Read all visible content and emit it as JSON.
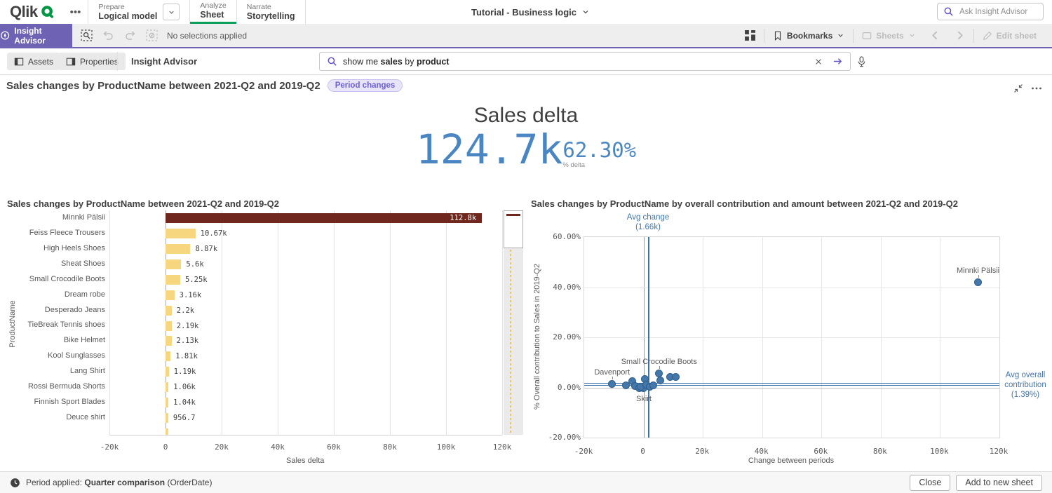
{
  "nav": {
    "logo": "Qlik",
    "prepare": {
      "section": "Prepare",
      "value": "Logical model"
    },
    "analyze": {
      "section": "Analyze",
      "value": "Sheet"
    },
    "narrate": {
      "section": "Narrate",
      "value": "Storytelling"
    },
    "app_title": "Tutorial - Business logic",
    "ask_placeholder": "Ask Insight Advisor"
  },
  "toolbar": {
    "insight_advisor": "Insight Advisor",
    "selections_status": "No selections applied",
    "bookmarks": "Bookmarks",
    "sheets": "Sheets",
    "edit_sheet": "Edit sheet"
  },
  "subheader": {
    "assets": "Assets",
    "properties": "Properties",
    "title": "Insight Advisor",
    "query_parts": [
      {
        "text": "show me ",
        "bold": false
      },
      {
        "text": "sales",
        "bold": true
      },
      {
        "text": " by ",
        "bold": false
      },
      {
        "text": "product",
        "bold": true
      }
    ]
  },
  "result": {
    "title": "Sales changes by ProductName between 2021-Q2 and 2019-Q2",
    "badge": "Period changes"
  },
  "kpi": {
    "title": "Sales delta",
    "value": "124.7k",
    "delta": "62.30%",
    "delta_label": "% delta"
  },
  "footer": {
    "period_label": "Period applied:",
    "period_name": "Quarter comparison",
    "period_field": "(OrderDate)",
    "close": "Close",
    "add_to_new_sheet": "Add to new sheet"
  },
  "chart_data": [
    {
      "type": "bar",
      "orientation": "horizontal",
      "title": "Sales changes by ProductName between 2021-Q2 and 2019-Q2",
      "xlabel": "Sales delta",
      "ylabel": "ProductName",
      "xlim": [
        -20000,
        120000
      ],
      "x_tick_values": [
        -20000,
        0,
        20000,
        40000,
        60000,
        80000,
        100000,
        120000
      ],
      "x_tick_labels": [
        "-20k",
        "0",
        "20k",
        "40k",
        "60k",
        "80k",
        "100k",
        "120k"
      ],
      "categories": [
        "Minnki Pälsii",
        "Feiss Fleece Trousers",
        "High Heels Shoes",
        "Sheat Shoes",
        "Small Crocodile Boots",
        "Dream robe",
        "Desperado Jeans",
        "TieBreak Tennis shoes",
        "Bike Helmet",
        "Kool Sunglasses",
        "Lang Shirt",
        "Rossi Bermuda Shorts",
        "Finnish Sport Blades",
        "Deuce shirt"
      ],
      "values": [
        112800,
        10670,
        8870,
        5600,
        5250,
        3160,
        2200,
        2190,
        2130,
        1810,
        1190,
        1060,
        1040,
        956.7
      ],
      "value_labels": [
        "112.8k",
        "10.67k",
        "8.87k",
        "5.6k",
        "5.25k",
        "3.16k",
        "2.2k",
        "2.19k",
        "2.13k",
        "1.81k",
        "1.19k",
        "1.06k",
        "1.04k",
        "956.7"
      ],
      "highlight_index": 0,
      "bar_color": "#f6d77f",
      "highlight_color": "#70281e",
      "partial_row_visible": true,
      "scrollbar_visible": true
    },
    {
      "type": "scatter",
      "title": "Sales changes by ProductName by overall contribution and amount between 2021-Q2 and 2019-Q2",
      "xlabel": "Change between periods",
      "ylabel": "% Overall contribution to Sales in 2019-Q2",
      "xlim": [
        -20000,
        120000
      ],
      "ylim_pct": [
        -20,
        60
      ],
      "x_tick_values": [
        -20000,
        0,
        20000,
        40000,
        60000,
        80000,
        100000,
        120000
      ],
      "x_tick_labels": [
        "-20k",
        "0",
        "20k",
        "40k",
        "60k",
        "80k",
        "100k",
        "120k"
      ],
      "y_tick_values": [
        60,
        40,
        20,
        0,
        -20
      ],
      "y_tick_labels": [
        "60.00%",
        "40.00%",
        "20.00%",
        "0.00%",
        "-20.00%"
      ],
      "avg_x": {
        "label": "Avg change",
        "value": 1660,
        "value_label": "(1.66k)"
      },
      "avg_y": {
        "label": "Avg overall contribution",
        "value_pct": 1.39,
        "value_label": "(1.39%)"
      },
      "point_color": "#4477aa",
      "points": [
        {
          "name": "Minnki Pälsii",
          "x": 112800,
          "y_pct": 42,
          "label_pos": "above"
        },
        {
          "name": "Small Crocodile Boots",
          "x": 5250,
          "y_pct": 5.6,
          "label_pos": "above"
        },
        {
          "name": "Davenport",
          "x": -10600,
          "y_pct": 1.5,
          "label_pos": "above"
        },
        {
          "name": "Skirt",
          "x": 100,
          "y_pct": -0.3,
          "label_pos": "below"
        },
        {
          "x": -5900,
          "y_pct": 0.8
        },
        {
          "x": -3800,
          "y_pct": 2.5
        },
        {
          "x": -2800,
          "y_pct": 0.6
        },
        {
          "x": -1500,
          "y_pct": -0.2
        },
        {
          "x": -900,
          "y_pct": 0.4
        },
        {
          "x": 500,
          "y_pct": 3.4
        },
        {
          "x": 900,
          "y_pct": 1.0
        },
        {
          "x": 2100,
          "y_pct": 0.3
        },
        {
          "x": 3300,
          "y_pct": 0.9
        },
        {
          "x": 5700,
          "y_pct": 2.8
        },
        {
          "x": 9000,
          "y_pct": 4.2
        },
        {
          "x": 10900,
          "y_pct": 4.2
        }
      ]
    }
  ]
}
